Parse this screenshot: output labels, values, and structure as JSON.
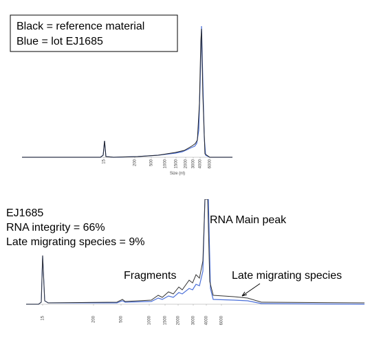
{
  "top_panel": {
    "legend": [
      "Black = reference material",
      "Blue = lot EJ1685"
    ],
    "x_ticks": [
      "15",
      "200",
      "500",
      "1000",
      "1500",
      "2000",
      "3000",
      "4000",
      "6000"
    ],
    "x_label": "Size (nt)"
  },
  "bottom_panel": {
    "info": [
      "EJ1685",
      "RNA integrity = 66%",
      "Late migrating species = 9%"
    ],
    "annotations": {
      "main_peak": "RNA Main peak",
      "fragments": "Fragments",
      "late_species": "Late migrating species"
    },
    "x_ticks": [
      "15",
      "200",
      "500",
      "1000",
      "1500",
      "2000",
      "3000",
      "4000",
      "6000"
    ]
  }
}
